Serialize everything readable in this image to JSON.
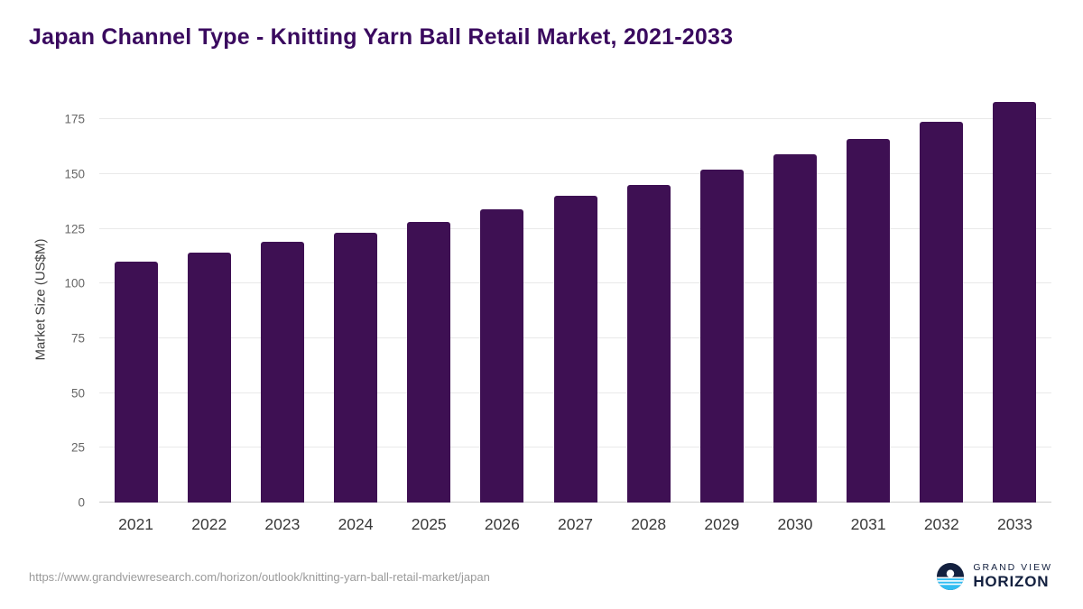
{
  "chart_data": {
    "type": "bar",
    "title": "Japan Channel Type - Knitting Yarn Ball Retail Market, 2021-2033",
    "xlabel": "",
    "ylabel": "Market Size (US$M)",
    "categories": [
      "2021",
      "2022",
      "2023",
      "2024",
      "2025",
      "2026",
      "2027",
      "2028",
      "2029",
      "2030",
      "2031",
      "2032",
      "2033"
    ],
    "values": [
      110,
      114,
      119,
      123,
      128,
      134,
      140,
      145,
      152,
      159,
      166,
      174,
      183
    ],
    "ylim": [
      0,
      185
    ],
    "yticks": [
      0,
      25,
      50,
      75,
      100,
      125,
      150,
      175
    ],
    "grid": true,
    "legend": "none",
    "bar_color": "#3e1053"
  },
  "colors": {
    "title": "#3a0a5f",
    "bar": "#3e1053",
    "gridline": "#e9e9e9",
    "axis_text": "#666666",
    "logo_navy": "#13203f",
    "logo_blue": "#31bdf2"
  },
  "footer": {
    "source_url": "https://www.grandviewresearch.com/horizon/outlook/knitting-yarn-ball-retail-market/japan",
    "logo": {
      "line1": "GRAND VIEW",
      "line2": "HORIZON"
    }
  }
}
